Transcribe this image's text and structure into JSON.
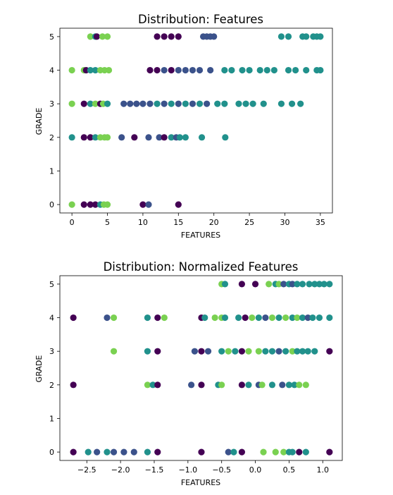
{
  "chart_data": [
    {
      "type": "scatter",
      "title": "Distribution: Features",
      "xlabel": "FEATURES",
      "ylabel": "GRADE",
      "xlim": [
        -1.7,
        36.7
      ],
      "ylim": [
        -0.25,
        5.25
      ],
      "xticks": [
        0,
        5,
        10,
        15,
        20,
        25,
        30,
        35
      ],
      "yticks": [
        0,
        1,
        2,
        3,
        4,
        5
      ],
      "grid": false,
      "colors": {
        "dark_purple": "#440154",
        "indigo": "#3b528b",
        "teal": "#21918c",
        "green": "#7ad151"
      },
      "points": [
        {
          "x": 2.6,
          "y": 5,
          "c": "green"
        },
        {
          "x": 3.3,
          "y": 5,
          "c": "teal"
        },
        {
          "x": 3.5,
          "y": 5,
          "c": "dark_purple"
        },
        {
          "x": 4.3,
          "y": 5,
          "c": "green"
        },
        {
          "x": 5.0,
          "y": 5,
          "c": "green"
        },
        {
          "x": 12.0,
          "y": 5,
          "c": "dark_purple"
        },
        {
          "x": 13.0,
          "y": 5,
          "c": "dark_purple"
        },
        {
          "x": 14.0,
          "y": 5,
          "c": "dark_purple"
        },
        {
          "x": 15.0,
          "y": 5,
          "c": "dark_purple"
        },
        {
          "x": 18.5,
          "y": 5,
          "c": "indigo"
        },
        {
          "x": 19.0,
          "y": 5,
          "c": "indigo"
        },
        {
          "x": 19.5,
          "y": 5,
          "c": "indigo"
        },
        {
          "x": 20.0,
          "y": 5,
          "c": "indigo"
        },
        {
          "x": 29.5,
          "y": 5,
          "c": "teal"
        },
        {
          "x": 30.5,
          "y": 5,
          "c": "teal"
        },
        {
          "x": 32.5,
          "y": 5,
          "c": "teal"
        },
        {
          "x": 33.0,
          "y": 5,
          "c": "teal"
        },
        {
          "x": 34.0,
          "y": 5,
          "c": "teal"
        },
        {
          "x": 34.5,
          "y": 5,
          "c": "teal"
        },
        {
          "x": 35.0,
          "y": 5,
          "c": "teal"
        },
        {
          "x": 0.0,
          "y": 4,
          "c": "green"
        },
        {
          "x": 1.7,
          "y": 4,
          "c": "green"
        },
        {
          "x": 2.0,
          "y": 4,
          "c": "dark_purple"
        },
        {
          "x": 2.6,
          "y": 4,
          "c": "teal"
        },
        {
          "x": 3.3,
          "y": 4,
          "c": "teal"
        },
        {
          "x": 4.0,
          "y": 4,
          "c": "green"
        },
        {
          "x": 4.6,
          "y": 4,
          "c": "green"
        },
        {
          "x": 5.2,
          "y": 4,
          "c": "green"
        },
        {
          "x": 11.0,
          "y": 4,
          "c": "dark_purple"
        },
        {
          "x": 12.0,
          "y": 4,
          "c": "dark_purple"
        },
        {
          "x": 13.0,
          "y": 4,
          "c": "indigo"
        },
        {
          "x": 14.0,
          "y": 4,
          "c": "dark_purple"
        },
        {
          "x": 15.0,
          "y": 4,
          "c": "indigo"
        },
        {
          "x": 16.0,
          "y": 4,
          "c": "indigo"
        },
        {
          "x": 17.0,
          "y": 4,
          "c": "indigo"
        },
        {
          "x": 18.0,
          "y": 4,
          "c": "indigo"
        },
        {
          "x": 19.5,
          "y": 4,
          "c": "indigo"
        },
        {
          "x": 21.5,
          "y": 4,
          "c": "teal"
        },
        {
          "x": 22.5,
          "y": 4,
          "c": "teal"
        },
        {
          "x": 24.0,
          "y": 4,
          "c": "teal"
        },
        {
          "x": 25.0,
          "y": 4,
          "c": "teal"
        },
        {
          "x": 26.5,
          "y": 4,
          "c": "teal"
        },
        {
          "x": 27.5,
          "y": 4,
          "c": "teal"
        },
        {
          "x": 28.5,
          "y": 4,
          "c": "teal"
        },
        {
          "x": 30.5,
          "y": 4,
          "c": "teal"
        },
        {
          "x": 31.5,
          "y": 4,
          "c": "teal"
        },
        {
          "x": 33.0,
          "y": 4,
          "c": "teal"
        },
        {
          "x": 34.5,
          "y": 4,
          "c": "teal"
        },
        {
          "x": 35.0,
          "y": 4,
          "c": "teal"
        },
        {
          "x": 0.0,
          "y": 3,
          "c": "green"
        },
        {
          "x": 1.7,
          "y": 3,
          "c": "dark_purple"
        },
        {
          "x": 2.6,
          "y": 3,
          "c": "teal"
        },
        {
          "x": 3.3,
          "y": 3,
          "c": "green"
        },
        {
          "x": 4.0,
          "y": 3,
          "c": "dark_purple"
        },
        {
          "x": 4.4,
          "y": 3,
          "c": "green"
        },
        {
          "x": 5.0,
          "y": 3,
          "c": "teal"
        },
        {
          "x": 7.3,
          "y": 3,
          "c": "indigo"
        },
        {
          "x": 8.2,
          "y": 3,
          "c": "indigo"
        },
        {
          "x": 9.1,
          "y": 3,
          "c": "indigo"
        },
        {
          "x": 10.0,
          "y": 3,
          "c": "indigo"
        },
        {
          "x": 11.0,
          "y": 3,
          "c": "indigo"
        },
        {
          "x": 12.0,
          "y": 3,
          "c": "teal"
        },
        {
          "x": 13.0,
          "y": 3,
          "c": "indigo"
        },
        {
          "x": 14.0,
          "y": 3,
          "c": "teal"
        },
        {
          "x": 15.0,
          "y": 3,
          "c": "indigo"
        },
        {
          "x": 16.0,
          "y": 3,
          "c": "teal"
        },
        {
          "x": 17.0,
          "y": 3,
          "c": "indigo"
        },
        {
          "x": 18.0,
          "y": 3,
          "c": "teal"
        },
        {
          "x": 19.0,
          "y": 3,
          "c": "indigo"
        },
        {
          "x": 20.5,
          "y": 3,
          "c": "teal"
        },
        {
          "x": 21.5,
          "y": 3,
          "c": "teal"
        },
        {
          "x": 23.5,
          "y": 3,
          "c": "teal"
        },
        {
          "x": 24.5,
          "y": 3,
          "c": "teal"
        },
        {
          "x": 25.5,
          "y": 3,
          "c": "teal"
        },
        {
          "x": 27.0,
          "y": 3,
          "c": "teal"
        },
        {
          "x": 29.5,
          "y": 3,
          "c": "teal"
        },
        {
          "x": 31.0,
          "y": 3,
          "c": "teal"
        },
        {
          "x": 32.2,
          "y": 3,
          "c": "teal"
        },
        {
          "x": 0.0,
          "y": 2,
          "c": "teal"
        },
        {
          "x": 1.7,
          "y": 2,
          "c": "dark_purple"
        },
        {
          "x": 2.6,
          "y": 2,
          "c": "dark_purple"
        },
        {
          "x": 3.3,
          "y": 2,
          "c": "teal"
        },
        {
          "x": 4.0,
          "y": 2,
          "c": "green"
        },
        {
          "x": 4.6,
          "y": 2,
          "c": "green"
        },
        {
          "x": 5.0,
          "y": 2,
          "c": "green"
        },
        {
          "x": 7.0,
          "y": 2,
          "c": "indigo"
        },
        {
          "x": 8.8,
          "y": 2,
          "c": "dark_purple"
        },
        {
          "x": 10.8,
          "y": 2,
          "c": "indigo"
        },
        {
          "x": 12.3,
          "y": 2,
          "c": "indigo"
        },
        {
          "x": 13.0,
          "y": 2,
          "c": "dark_purple"
        },
        {
          "x": 14.0,
          "y": 2,
          "c": "teal"
        },
        {
          "x": 14.7,
          "y": 2,
          "c": "indigo"
        },
        {
          "x": 15.2,
          "y": 2,
          "c": "teal"
        },
        {
          "x": 16.0,
          "y": 2,
          "c": "teal"
        },
        {
          "x": 18.3,
          "y": 2,
          "c": "teal"
        },
        {
          "x": 21.6,
          "y": 2,
          "c": "teal"
        },
        {
          "x": 0.0,
          "y": 0,
          "c": "green"
        },
        {
          "x": 1.7,
          "y": 0,
          "c": "dark_purple"
        },
        {
          "x": 2.6,
          "y": 0,
          "c": "dark_purple"
        },
        {
          "x": 3.3,
          "y": 0,
          "c": "dark_purple"
        },
        {
          "x": 4.0,
          "y": 0,
          "c": "teal"
        },
        {
          "x": 4.5,
          "y": 0,
          "c": "green"
        },
        {
          "x": 5.0,
          "y": 0,
          "c": "green"
        },
        {
          "x": 10.0,
          "y": 0,
          "c": "dark_purple"
        },
        {
          "x": 10.8,
          "y": 0,
          "c": "indigo"
        },
        {
          "x": 15.0,
          "y": 0,
          "c": "dark_purple"
        }
      ]
    },
    {
      "type": "scatter",
      "title": "Distribution: Normalized Features",
      "xlabel": "FEATURES",
      "ylabel": "GRADE",
      "xlim": [
        -2.9,
        1.29
      ],
      "ylim": [
        -0.25,
        5.25
      ],
      "xticks": [
        -2.5,
        -2.0,
        -1.5,
        -1.0,
        -0.5,
        0.0,
        0.5,
        1.0
      ],
      "xtick_labels": [
        "−2.5",
        "−2.0",
        "−1.5",
        "−1.0",
        "−0.5",
        "0.0",
        "0.5",
        "1.0"
      ],
      "yticks": [
        0,
        1,
        2,
        3,
        4,
        5
      ],
      "grid": false,
      "colors": {
        "dark_purple": "#440154",
        "indigo": "#3b528b",
        "teal": "#21918c",
        "green": "#7ad151"
      },
      "points": [
        {
          "x": -0.5,
          "y": 5,
          "c": "green"
        },
        {
          "x": -0.45,
          "y": 5,
          "c": "teal"
        },
        {
          "x": -0.2,
          "y": 5,
          "c": "dark_purple"
        },
        {
          "x": 0.0,
          "y": 5,
          "c": "dark_purple"
        },
        {
          "x": 0.2,
          "y": 5,
          "c": "green"
        },
        {
          "x": 0.3,
          "y": 5,
          "c": "teal"
        },
        {
          "x": 0.35,
          "y": 5,
          "c": "green"
        },
        {
          "x": 0.42,
          "y": 5,
          "c": "indigo"
        },
        {
          "x": 0.5,
          "y": 5,
          "c": "teal"
        },
        {
          "x": 0.55,
          "y": 5,
          "c": "indigo"
        },
        {
          "x": 0.62,
          "y": 5,
          "c": "teal"
        },
        {
          "x": 0.7,
          "y": 5,
          "c": "teal"
        },
        {
          "x": 0.8,
          "y": 5,
          "c": "teal"
        },
        {
          "x": 0.88,
          "y": 5,
          "c": "teal"
        },
        {
          "x": 0.95,
          "y": 5,
          "c": "teal"
        },
        {
          "x": 1.02,
          "y": 5,
          "c": "teal"
        },
        {
          "x": 1.1,
          "y": 5,
          "c": "teal"
        },
        {
          "x": -2.7,
          "y": 4,
          "c": "dark_purple"
        },
        {
          "x": -2.2,
          "y": 4,
          "c": "indigo"
        },
        {
          "x": -2.1,
          "y": 4,
          "c": "green"
        },
        {
          "x": -1.6,
          "y": 4,
          "c": "teal"
        },
        {
          "x": -1.45,
          "y": 4,
          "c": "dark_purple"
        },
        {
          "x": -1.35,
          "y": 4,
          "c": "green"
        },
        {
          "x": -0.8,
          "y": 4,
          "c": "dark_purple"
        },
        {
          "x": -0.75,
          "y": 4,
          "c": "teal"
        },
        {
          "x": -0.6,
          "y": 4,
          "c": "green"
        },
        {
          "x": -0.5,
          "y": 4,
          "c": "green"
        },
        {
          "x": -0.45,
          "y": 4,
          "c": "teal"
        },
        {
          "x": -0.25,
          "y": 4,
          "c": "teal"
        },
        {
          "x": -0.15,
          "y": 4,
          "c": "dark_purple"
        },
        {
          "x": -0.05,
          "y": 4,
          "c": "green"
        },
        {
          "x": 0.05,
          "y": 4,
          "c": "teal"
        },
        {
          "x": 0.15,
          "y": 4,
          "c": "indigo"
        },
        {
          "x": 0.25,
          "y": 4,
          "c": "green"
        },
        {
          "x": 0.35,
          "y": 4,
          "c": "teal"
        },
        {
          "x": 0.45,
          "y": 4,
          "c": "green"
        },
        {
          "x": 0.55,
          "y": 4,
          "c": "teal"
        },
        {
          "x": 0.62,
          "y": 4,
          "c": "green"
        },
        {
          "x": 0.7,
          "y": 4,
          "c": "teal"
        },
        {
          "x": 0.78,
          "y": 4,
          "c": "indigo"
        },
        {
          "x": 0.85,
          "y": 4,
          "c": "teal"
        },
        {
          "x": 0.95,
          "y": 4,
          "c": "teal"
        },
        {
          "x": 1.1,
          "y": 4,
          "c": "teal"
        },
        {
          "x": -2.1,
          "y": 3,
          "c": "green"
        },
        {
          "x": -1.6,
          "y": 3,
          "c": "teal"
        },
        {
          "x": -1.45,
          "y": 3,
          "c": "dark_purple"
        },
        {
          "x": -0.9,
          "y": 3,
          "c": "indigo"
        },
        {
          "x": -0.8,
          "y": 3,
          "c": "dark_purple"
        },
        {
          "x": -0.7,
          "y": 3,
          "c": "indigo"
        },
        {
          "x": -0.5,
          "y": 3,
          "c": "teal"
        },
        {
          "x": -0.4,
          "y": 3,
          "c": "green"
        },
        {
          "x": -0.3,
          "y": 3,
          "c": "teal"
        },
        {
          "x": -0.2,
          "y": 3,
          "c": "dark_purple"
        },
        {
          "x": -0.1,
          "y": 3,
          "c": "green"
        },
        {
          "x": 0.05,
          "y": 3,
          "c": "green"
        },
        {
          "x": 0.15,
          "y": 3,
          "c": "teal"
        },
        {
          "x": 0.25,
          "y": 3,
          "c": "teal"
        },
        {
          "x": 0.35,
          "y": 3,
          "c": "indigo"
        },
        {
          "x": 0.45,
          "y": 3,
          "c": "teal"
        },
        {
          "x": 0.55,
          "y": 3,
          "c": "green"
        },
        {
          "x": 0.62,
          "y": 3,
          "c": "teal"
        },
        {
          "x": 0.7,
          "y": 3,
          "c": "teal"
        },
        {
          "x": 0.78,
          "y": 3,
          "c": "teal"
        },
        {
          "x": 0.88,
          "y": 3,
          "c": "teal"
        },
        {
          "x": 1.1,
          "y": 3,
          "c": "dark_purple"
        },
        {
          "x": -2.7,
          "y": 2,
          "c": "dark_purple"
        },
        {
          "x": -1.6,
          "y": 2,
          "c": "green"
        },
        {
          "x": -1.52,
          "y": 2,
          "c": "teal"
        },
        {
          "x": -1.45,
          "y": 2,
          "c": "dark_purple"
        },
        {
          "x": -0.95,
          "y": 2,
          "c": "indigo"
        },
        {
          "x": -0.8,
          "y": 2,
          "c": "dark_purple"
        },
        {
          "x": -0.55,
          "y": 2,
          "c": "teal"
        },
        {
          "x": -0.5,
          "y": 2,
          "c": "green"
        },
        {
          "x": -0.2,
          "y": 2,
          "c": "dark_purple"
        },
        {
          "x": -0.1,
          "y": 2,
          "c": "teal"
        },
        {
          "x": 0.05,
          "y": 2,
          "c": "indigo"
        },
        {
          "x": 0.1,
          "y": 2,
          "c": "green"
        },
        {
          "x": 0.25,
          "y": 2,
          "c": "teal"
        },
        {
          "x": 0.4,
          "y": 2,
          "c": "indigo"
        },
        {
          "x": 0.5,
          "y": 2,
          "c": "teal"
        },
        {
          "x": 0.58,
          "y": 2,
          "c": "teal"
        },
        {
          "x": 0.65,
          "y": 2,
          "c": "green"
        },
        {
          "x": 0.75,
          "y": 2,
          "c": "green"
        },
        {
          "x": -2.7,
          "y": 0,
          "c": "dark_purple"
        },
        {
          "x": -2.48,
          "y": 0,
          "c": "teal"
        },
        {
          "x": -2.35,
          "y": 0,
          "c": "indigo"
        },
        {
          "x": -2.2,
          "y": 0,
          "c": "teal"
        },
        {
          "x": -2.1,
          "y": 0,
          "c": "indigo"
        },
        {
          "x": -1.95,
          "y": 0,
          "c": "indigo"
        },
        {
          "x": -1.8,
          "y": 0,
          "c": "indigo"
        },
        {
          "x": -1.6,
          "y": 0,
          "c": "teal"
        },
        {
          "x": -1.45,
          "y": 0,
          "c": "dark_purple"
        },
        {
          "x": -0.8,
          "y": 0,
          "c": "dark_purple"
        },
        {
          "x": -0.4,
          "y": 0,
          "c": "indigo"
        },
        {
          "x": -0.32,
          "y": 0,
          "c": "teal"
        },
        {
          "x": -0.2,
          "y": 0,
          "c": "dark_purple"
        },
        {
          "x": 0.12,
          "y": 0,
          "c": "green"
        },
        {
          "x": 0.3,
          "y": 0,
          "c": "green"
        },
        {
          "x": 0.42,
          "y": 0,
          "c": "green"
        },
        {
          "x": 0.5,
          "y": 0,
          "c": "teal"
        },
        {
          "x": 0.55,
          "y": 0,
          "c": "teal"
        },
        {
          "x": 0.65,
          "y": 0,
          "c": "dark_purple"
        },
        {
          "x": 0.75,
          "y": 0,
          "c": "teal"
        },
        {
          "x": 1.1,
          "y": 0,
          "c": "dark_purple"
        }
      ]
    }
  ]
}
